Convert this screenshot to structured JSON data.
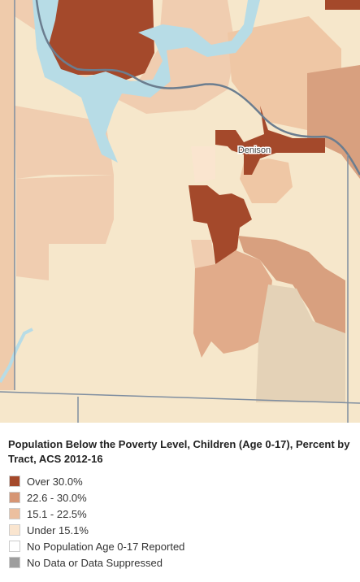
{
  "map": {
    "place_label": "Denison"
  },
  "legend": {
    "title": "Population Below the Poverty Level, Children (Age 0-17), Percent by Tract, ACS 2012-16",
    "items": [
      {
        "label": "Over 30.0%",
        "color": "#a4492b"
      },
      {
        "label": "22.6 - 30.0%",
        "color": "#d69574"
      },
      {
        "label": "15.1 - 22.5%",
        "color": "#ecbf9f"
      },
      {
        "label": "Under 15.1%",
        "color": "#fae5cf"
      },
      {
        "label": "No Population Age 0-17 Reported",
        "color": "#ffffff"
      },
      {
        "label": "No Data or Data Suppressed",
        "color": "#9d9d9d"
      }
    ]
  }
}
